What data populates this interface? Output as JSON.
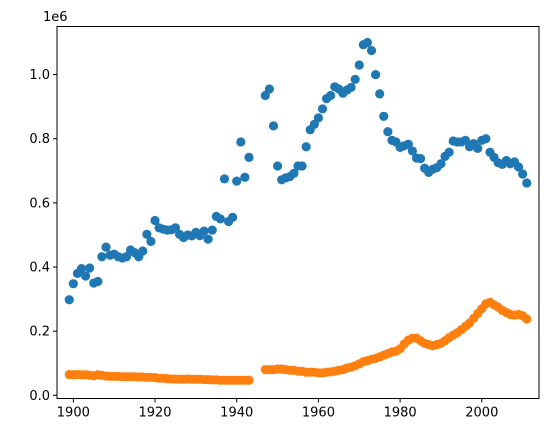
{
  "chart_data": {
    "type": "scatter",
    "title": "",
    "xlabel": "",
    "ylabel": "",
    "y_offset_text": "1e6",
    "xlim": [
      1896,
      2014
    ],
    "ylim": [
      -10000,
      1150000
    ],
    "x_ticks": [
      1900,
      1920,
      1940,
      1960,
      1980,
      2000
    ],
    "x_tick_labels": [
      "1900",
      "1920",
      "1940",
      "1960",
      "1980",
      "2000"
    ],
    "y_ticks": [
      0,
      200000,
      400000,
      600000,
      800000,
      1000000
    ],
    "y_tick_labels": [
      "0.0",
      "0.2",
      "0.4",
      "0.6",
      "0.8",
      "1.0"
    ],
    "grid": false,
    "legend": "none",
    "series": [
      {
        "color": "#1f77b4",
        "points": [
          [
            1899,
            298000
          ],
          [
            1900,
            348000
          ],
          [
            1901,
            380000
          ],
          [
            1902,
            395000
          ],
          [
            1903,
            372000
          ],
          [
            1904,
            397000
          ],
          [
            1905,
            350000
          ],
          [
            1906,
            355000
          ],
          [
            1907,
            432000
          ],
          [
            1908,
            462000
          ],
          [
            1909,
            437000
          ],
          [
            1910,
            440000
          ],
          [
            1911,
            432000
          ],
          [
            1912,
            428000
          ],
          [
            1913,
            432000
          ],
          [
            1914,
            453000
          ],
          [
            1915,
            445000
          ],
          [
            1916,
            432000
          ],
          [
            1917,
            450000
          ],
          [
            1918,
            502000
          ],
          [
            1919,
            480000
          ],
          [
            1920,
            545000
          ],
          [
            1921,
            522000
          ],
          [
            1922,
            518000
          ],
          [
            1923,
            515000
          ],
          [
            1924,
            516000
          ],
          [
            1925,
            522000
          ],
          [
            1926,
            502000
          ],
          [
            1927,
            492000
          ],
          [
            1928,
            500000
          ],
          [
            1929,
            497000
          ],
          [
            1930,
            508000
          ],
          [
            1931,
            498000
          ],
          [
            1932,
            512000
          ],
          [
            1933,
            487000
          ],
          [
            1934,
            515000
          ],
          [
            1935,
            558000
          ],
          [
            1936,
            550000
          ],
          [
            1937,
            675000
          ],
          [
            1938,
            542000
          ],
          [
            1939,
            555000
          ],
          [
            1940,
            668000
          ],
          [
            1941,
            790000
          ],
          [
            1942,
            680000
          ],
          [
            1943,
            742000
          ],
          [
            1947,
            935000
          ],
          [
            1948,
            955000
          ],
          [
            1949,
            840000
          ],
          [
            1950,
            715000
          ],
          [
            1951,
            672000
          ],
          [
            1952,
            678000
          ],
          [
            1953,
            682000
          ],
          [
            1954,
            692000
          ],
          [
            1955,
            715000
          ],
          [
            1956,
            715000
          ],
          [
            1957,
            775000
          ],
          [
            1958,
            828000
          ],
          [
            1959,
            845000
          ],
          [
            1960,
            865000
          ],
          [
            1961,
            893000
          ],
          [
            1962,
            925000
          ],
          [
            1963,
            935000
          ],
          [
            1964,
            962000
          ],
          [
            1965,
            955000
          ],
          [
            1966,
            942000
          ],
          [
            1967,
            952000
          ],
          [
            1968,
            960000
          ],
          [
            1969,
            985000
          ],
          [
            1970,
            1030000
          ],
          [
            1971,
            1093000
          ],
          [
            1972,
            1100000
          ],
          [
            1973,
            1075000
          ],
          [
            1974,
            1000000
          ],
          [
            1975,
            940000
          ],
          [
            1976,
            870000
          ],
          [
            1977,
            822000
          ],
          [
            1978,
            795000
          ],
          [
            1979,
            790000
          ],
          [
            1980,
            773000
          ],
          [
            1981,
            778000
          ],
          [
            1982,
            783000
          ],
          [
            1983,
            762000
          ],
          [
            1984,
            740000
          ],
          [
            1985,
            738000
          ],
          [
            1986,
            708000
          ],
          [
            1987,
            695000
          ],
          [
            1988,
            705000
          ],
          [
            1989,
            710000
          ],
          [
            1990,
            722000
          ],
          [
            1991,
            745000
          ],
          [
            1992,
            758000
          ],
          [
            1993,
            793000
          ],
          [
            1994,
            790000
          ],
          [
            1995,
            790000
          ],
          [
            1996,
            795000
          ],
          [
            1997,
            775000
          ],
          [
            1998,
            785000
          ],
          [
            1999,
            770000
          ],
          [
            2000,
            795000
          ],
          [
            2001,
            800000
          ],
          [
            2002,
            758000
          ],
          [
            2003,
            742000
          ],
          [
            2004,
            725000
          ],
          [
            2005,
            720000
          ],
          [
            2006,
            732000
          ],
          [
            2007,
            722000
          ],
          [
            2008,
            728000
          ],
          [
            2009,
            712000
          ],
          [
            2010,
            690000
          ],
          [
            2011,
            662000
          ]
        ]
      },
      {
        "color": "#ff7f0e",
        "points": [
          [
            1899,
            65000
          ],
          [
            1900,
            64000
          ],
          [
            1901,
            65000
          ],
          [
            1902,
            64000
          ],
          [
            1903,
            64000
          ],
          [
            1904,
            63000
          ],
          [
            1905,
            61000
          ],
          [
            1906,
            64000
          ],
          [
            1907,
            62000
          ],
          [
            1908,
            60000
          ],
          [
            1909,
            59000
          ],
          [
            1910,
            59000
          ],
          [
            1911,
            59000
          ],
          [
            1912,
            58000
          ],
          [
            1913,
            58000
          ],
          [
            1914,
            58000
          ],
          [
            1915,
            58000
          ],
          [
            1916,
            57000
          ],
          [
            1917,
            57000
          ],
          [
            1918,
            56000
          ],
          [
            1919,
            56000
          ],
          [
            1920,
            55000
          ],
          [
            1921,
            53000
          ],
          [
            1922,
            53000
          ],
          [
            1923,
            52000
          ],
          [
            1924,
            51000
          ],
          [
            1925,
            51000
          ],
          [
            1926,
            50000
          ],
          [
            1927,
            50000
          ],
          [
            1928,
            51000
          ],
          [
            1929,
            50000
          ],
          [
            1930,
            50000
          ],
          [
            1931,
            50000
          ],
          [
            1932,
            49000
          ],
          [
            1933,
            49000
          ],
          [
            1934,
            48000
          ],
          [
            1935,
            48000
          ],
          [
            1936,
            47000
          ],
          [
            1937,
            47000
          ],
          [
            1938,
            47000
          ],
          [
            1939,
            47000
          ],
          [
            1940,
            47000
          ],
          [
            1941,
            47000
          ],
          [
            1942,
            47000
          ],
          [
            1943,
            47000
          ],
          [
            1947,
            80000
          ],
          [
            1948,
            80000
          ],
          [
            1949,
            80000
          ],
          [
            1950,
            82000
          ],
          [
            1951,
            82000
          ],
          [
            1952,
            80000
          ],
          [
            1953,
            78000
          ],
          [
            1954,
            78000
          ],
          [
            1955,
            75000
          ],
          [
            1956,
            75000
          ],
          [
            1957,
            72000
          ],
          [
            1958,
            72000
          ],
          [
            1959,
            72000
          ],
          [
            1960,
            70000
          ],
          [
            1961,
            70000
          ],
          [
            1962,
            72000
          ],
          [
            1963,
            73000
          ],
          [
            1964,
            75000
          ],
          [
            1965,
            78000
          ],
          [
            1966,
            80000
          ],
          [
            1967,
            85000
          ],
          [
            1968,
            88000
          ],
          [
            1969,
            92000
          ],
          [
            1970,
            98000
          ],
          [
            1971,
            105000
          ],
          [
            1972,
            108000
          ],
          [
            1973,
            112000
          ],
          [
            1974,
            115000
          ],
          [
            1975,
            120000
          ],
          [
            1976,
            125000
          ],
          [
            1977,
            130000
          ],
          [
            1978,
            135000
          ],
          [
            1979,
            138000
          ],
          [
            1980,
            145000
          ],
          [
            1981,
            160000
          ],
          [
            1982,
            172000
          ],
          [
            1983,
            178000
          ],
          [
            1984,
            178000
          ],
          [
            1985,
            170000
          ],
          [
            1986,
            162000
          ],
          [
            1987,
            158000
          ],
          [
            1988,
            155000
          ],
          [
            1989,
            158000
          ],
          [
            1990,
            162000
          ],
          [
            1991,
            170000
          ],
          [
            1992,
            180000
          ],
          [
            1993,
            188000
          ],
          [
            1994,
            195000
          ],
          [
            1995,
            205000
          ],
          [
            1996,
            215000
          ],
          [
            1997,
            225000
          ],
          [
            1998,
            240000
          ],
          [
            1999,
            255000
          ],
          [
            2000,
            270000
          ],
          [
            2001,
            285000
          ],
          [
            2002,
            290000
          ],
          [
            2003,
            282000
          ],
          [
            2004,
            275000
          ],
          [
            2005,
            265000
          ],
          [
            2006,
            258000
          ],
          [
            2007,
            252000
          ],
          [
            2008,
            250000
          ],
          [
            2009,
            252000
          ],
          [
            2010,
            248000
          ],
          [
            2011,
            238000
          ]
        ]
      }
    ]
  }
}
